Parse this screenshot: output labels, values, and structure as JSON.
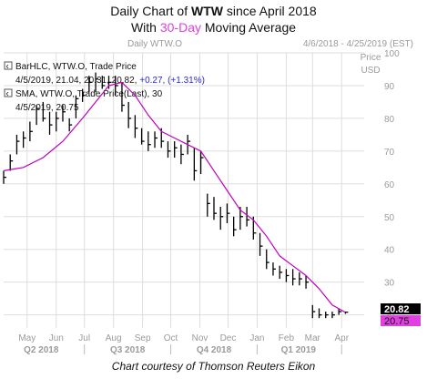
{
  "header": {
    "title_prefix": "Daily Chart of ",
    "title_ticker": "WTW",
    "title_suffix": " since April 2018",
    "subtitle_prefix": "With ",
    "subtitle_highlight": "30-Day",
    "subtitle_suffix": " Moving Average",
    "panel_label": "Daily WTW.O",
    "date_range": "4/6/2018 - 4/25/2019 (EST)",
    "price_axis_label_1": "Price",
    "price_axis_label_2": "USD"
  },
  "legend": {
    "bar_series_label": "BarHLC, WTW.O, Trade Price",
    "bar_values": "4/5/2019, 21.04, 20.31, 20.82,",
    "bar_change": "+0.27, (+1.31%)",
    "sma_label": "SMA, WTW.O, Trade Price(Last), 30",
    "sma_values": "4/5/2019, 20.75"
  },
  "last_labels": {
    "price": "20.82",
    "sma": "20.75"
  },
  "footer": {
    "credit": "Chart courtesy of Thomson Reuters Eikon"
  },
  "colors": {
    "price_bars": "#000000",
    "sma_line": "#c000c0",
    "grid": "#dddddd",
    "axis_text": "#9a9a9a",
    "accent": "#e040e0"
  },
  "chart_data": {
    "type": "line",
    "ylim": [
      16,
      100
    ],
    "yticks": [
      20,
      30,
      40,
      50,
      60,
      70,
      80,
      90,
      100
    ],
    "xlim": [
      "2018-04-06",
      "2019-04-25"
    ],
    "month_ticks": [
      {
        "label": "May",
        "date": "2018-05-01"
      },
      {
        "label": "Jun",
        "date": "2018-06-01"
      },
      {
        "label": "Jul",
        "date": "2018-07-01"
      },
      {
        "label": "Aug",
        "date": "2018-08-01"
      },
      {
        "label": "Sep",
        "date": "2018-09-01"
      },
      {
        "label": "Oct",
        "date": "2018-10-01"
      },
      {
        "label": "Nov",
        "date": "2018-11-01"
      },
      {
        "label": "Dec",
        "date": "2018-12-01"
      },
      {
        "label": "Jan",
        "date": "2019-01-01"
      },
      {
        "label": "Feb",
        "date": "2019-02-01"
      },
      {
        "label": "Mar",
        "date": "2019-03-01"
      },
      {
        "label": "Apr",
        "date": "2019-04-01"
      }
    ],
    "quarter_ticks": [
      {
        "label": "Q2 2018",
        "date": "2018-05-16"
      },
      {
        "label": "Q3 2018",
        "date": "2018-08-16"
      },
      {
        "label": "Q4 2018",
        "date": "2018-11-16"
      },
      {
        "label": "Q1 2019",
        "date": "2019-02-14"
      }
    ],
    "series": [
      {
        "name": "WTW.O Trade Price",
        "kind": "hlc_bar",
        "points": [
          {
            "date": "2018-04-06",
            "high": 64,
            "low": 60,
            "close": 62
          },
          {
            "date": "2018-04-13",
            "high": 69,
            "low": 64,
            "close": 67
          },
          {
            "date": "2018-04-20",
            "high": 75,
            "low": 69,
            "close": 73
          },
          {
            "date": "2018-04-27",
            "high": 76,
            "low": 71,
            "close": 74
          },
          {
            "date": "2018-05-04",
            "high": 79,
            "low": 73,
            "close": 76
          },
          {
            "date": "2018-05-11",
            "high": 84,
            "low": 78,
            "close": 83
          },
          {
            "date": "2018-05-18",
            "high": 85,
            "low": 79,
            "close": 80
          },
          {
            "date": "2018-05-25",
            "high": 82,
            "low": 75,
            "close": 78
          },
          {
            "date": "2018-06-01",
            "high": 82,
            "low": 76,
            "close": 80
          },
          {
            "date": "2018-06-08",
            "high": 84,
            "low": 79,
            "close": 82
          },
          {
            "date": "2018-06-15",
            "high": 80,
            "low": 76,
            "close": 78
          },
          {
            "date": "2018-06-22",
            "high": 87,
            "low": 80,
            "close": 86
          },
          {
            "date": "2018-06-29",
            "high": 89,
            "low": 85,
            "close": 87
          },
          {
            "date": "2018-07-06",
            "high": 93,
            "low": 88,
            "close": 91
          },
          {
            "date": "2018-07-13",
            "high": 94,
            "low": 88,
            "close": 92
          },
          {
            "date": "2018-07-20",
            "high": 93,
            "low": 89,
            "close": 90
          },
          {
            "date": "2018-07-27",
            "high": 93,
            "low": 89,
            "close": 91
          },
          {
            "date": "2018-08-03",
            "high": 93,
            "low": 87,
            "close": 90
          },
          {
            "date": "2018-08-10",
            "high": 91,
            "low": 82,
            "close": 84
          },
          {
            "date": "2018-08-17",
            "high": 85,
            "low": 77,
            "close": 80
          },
          {
            "date": "2018-08-24",
            "high": 81,
            "low": 74,
            "close": 77
          },
          {
            "date": "2018-08-31",
            "high": 77,
            "low": 72,
            "close": 73
          },
          {
            "date": "2018-09-07",
            "high": 76,
            "low": 70,
            "close": 72
          },
          {
            "date": "2018-09-14",
            "high": 76,
            "low": 71,
            "close": 74
          },
          {
            "date": "2018-09-21",
            "high": 77,
            "low": 71,
            "close": 73
          },
          {
            "date": "2018-09-28",
            "high": 73,
            "low": 68,
            "close": 70
          },
          {
            "date": "2018-10-05",
            "high": 73,
            "low": 68,
            "close": 71
          },
          {
            "date": "2018-10-12",
            "high": 72,
            "low": 66,
            "close": 69
          },
          {
            "date": "2018-10-19",
            "high": 75,
            "low": 69,
            "close": 73
          },
          {
            "date": "2018-10-26",
            "high": 71,
            "low": 61,
            "close": 64
          },
          {
            "date": "2018-11-02",
            "high": 70,
            "low": 63,
            "close": 68
          },
          {
            "date": "2018-11-09",
            "high": 57,
            "low": 50,
            "close": 54
          },
          {
            "date": "2018-11-16",
            "high": 56,
            "low": 49,
            "close": 51
          },
          {
            "date": "2018-11-23",
            "high": 53,
            "low": 46,
            "close": 50
          },
          {
            "date": "2018-11-30",
            "high": 54,
            "low": 48,
            "close": 51
          },
          {
            "date": "2018-12-07",
            "high": 50,
            "low": 44,
            "close": 46
          },
          {
            "date": "2018-12-14",
            "high": 53,
            "low": 46,
            "close": 50
          },
          {
            "date": "2018-12-21",
            "high": 53,
            "low": 47,
            "close": 49
          },
          {
            "date": "2018-12-28",
            "high": 50,
            "low": 43,
            "close": 45
          },
          {
            "date": "2019-01-04",
            "high": 45,
            "low": 38,
            "close": 41
          },
          {
            "date": "2019-01-11",
            "high": 40,
            "low": 34,
            "close": 36
          },
          {
            "date": "2019-01-18",
            "high": 36,
            "low": 32,
            "close": 34
          },
          {
            "date": "2019-01-25",
            "high": 35,
            "low": 31,
            "close": 33
          },
          {
            "date": "2019-02-01",
            "high": 34,
            "low": 30,
            "close": 32
          },
          {
            "date": "2019-02-08",
            "high": 34,
            "low": 29,
            "close": 31
          },
          {
            "date": "2019-02-15",
            "high": 33,
            "low": 29,
            "close": 31
          },
          {
            "date": "2019-02-22",
            "high": 32,
            "low": 28,
            "close": 30
          },
          {
            "date": "2019-03-01",
            "high": 23,
            "low": 19,
            "close": 21
          },
          {
            "date": "2019-03-08",
            "high": 22,
            "low": 19,
            "close": 20
          },
          {
            "date": "2019-03-15",
            "high": 21,
            "low": 19,
            "close": 20
          },
          {
            "date": "2019-03-22",
            "high": 21,
            "low": 19,
            "close": 20
          },
          {
            "date": "2019-03-29",
            "high": 22,
            "low": 20,
            "close": 21
          },
          {
            "date": "2019-04-05",
            "high": 21.04,
            "low": 20.31,
            "close": 20.82
          }
        ]
      },
      {
        "name": "SMA 30",
        "kind": "line",
        "points": [
          {
            "date": "2018-04-06",
            "value": 64
          },
          {
            "date": "2018-04-27",
            "value": 65
          },
          {
            "date": "2018-05-18",
            "value": 68
          },
          {
            "date": "2018-06-08",
            "value": 73
          },
          {
            "date": "2018-06-29",
            "value": 80
          },
          {
            "date": "2018-07-13",
            "value": 85
          },
          {
            "date": "2018-07-27",
            "value": 90
          },
          {
            "date": "2018-08-10",
            "value": 91
          },
          {
            "date": "2018-08-24",
            "value": 87
          },
          {
            "date": "2018-09-07",
            "value": 81
          },
          {
            "date": "2018-09-21",
            "value": 76
          },
          {
            "date": "2018-10-05",
            "value": 74
          },
          {
            "date": "2018-10-19",
            "value": 72
          },
          {
            "date": "2018-11-02",
            "value": 70
          },
          {
            "date": "2018-11-16",
            "value": 64
          },
          {
            "date": "2018-11-30",
            "value": 58
          },
          {
            "date": "2018-12-14",
            "value": 52
          },
          {
            "date": "2018-12-28",
            "value": 49
          },
          {
            "date": "2019-01-11",
            "value": 44
          },
          {
            "date": "2019-01-25",
            "value": 38
          },
          {
            "date": "2019-02-08",
            "value": 35
          },
          {
            "date": "2019-02-22",
            "value": 32
          },
          {
            "date": "2019-03-08",
            "value": 28
          },
          {
            "date": "2019-03-22",
            "value": 23
          },
          {
            "date": "2019-04-05",
            "value": 20.75
          }
        ]
      }
    ]
  }
}
